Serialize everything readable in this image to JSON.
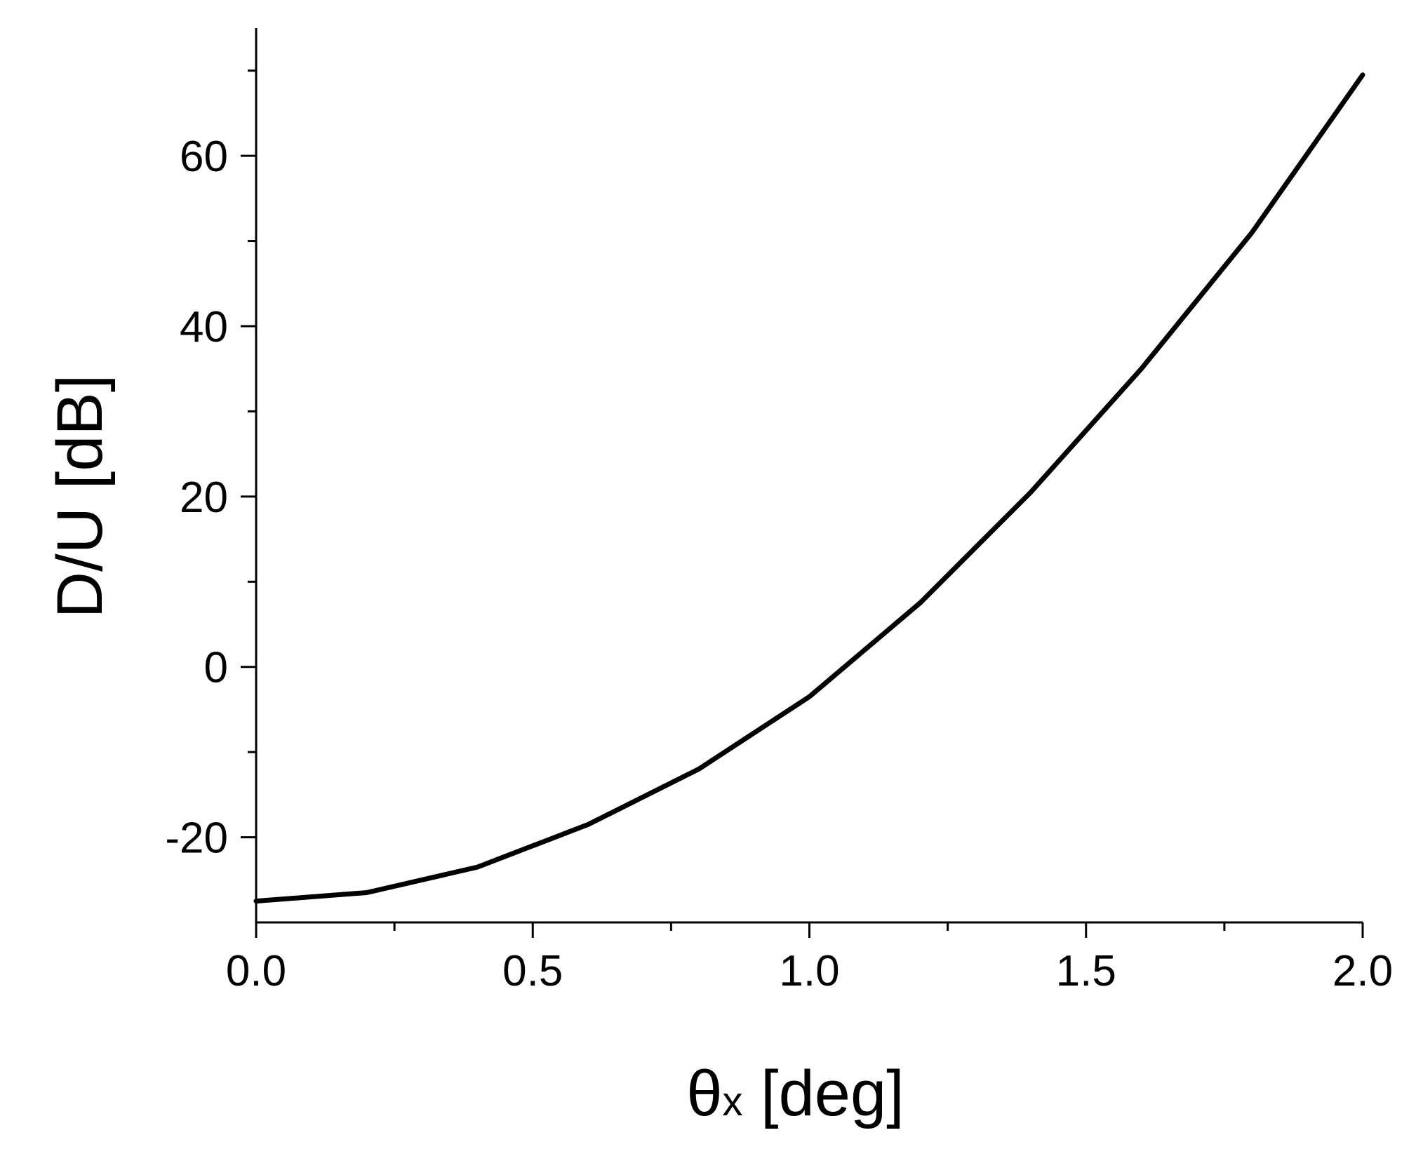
{
  "chart_data": {
    "type": "line",
    "title": "",
    "xlabel": "θx [deg]",
    "xlabel_main": "θ",
    "xlabel_sub": "x",
    "xlabel_unit": " [deg]",
    "ylabel": "D/U [dB]",
    "xlim": [
      0.0,
      2.0
    ],
    "ylim": [
      -30,
      75
    ],
    "x_ticks": [
      0.0,
      0.5,
      1.0,
      1.5,
      2.0
    ],
    "x_tick_labels": [
      "0.0",
      "0.5",
      "1.0",
      "1.5",
      "2.0"
    ],
    "x_minor_ticks": [
      0.25,
      0.75,
      1.25,
      1.75
    ],
    "y_ticks": [
      -20,
      0,
      20,
      40,
      60
    ],
    "y_tick_labels": [
      "-20",
      "0",
      "20",
      "40",
      "60"
    ],
    "y_minor_ticks": [
      -10,
      10,
      30,
      50,
      70
    ],
    "grid": false,
    "series": [
      {
        "x": [
          0.0,
          0.2,
          0.4,
          0.6,
          0.8,
          1.0,
          1.2,
          1.4,
          1.6,
          1.8,
          2.0
        ],
        "y": [
          -27.5,
          -26.5,
          -23.5,
          -18.5,
          -12.0,
          -3.5,
          7.5,
          20.5,
          35.0,
          51.0,
          69.5
        ]
      }
    ],
    "colors": {
      "line": "#000000"
    }
  }
}
